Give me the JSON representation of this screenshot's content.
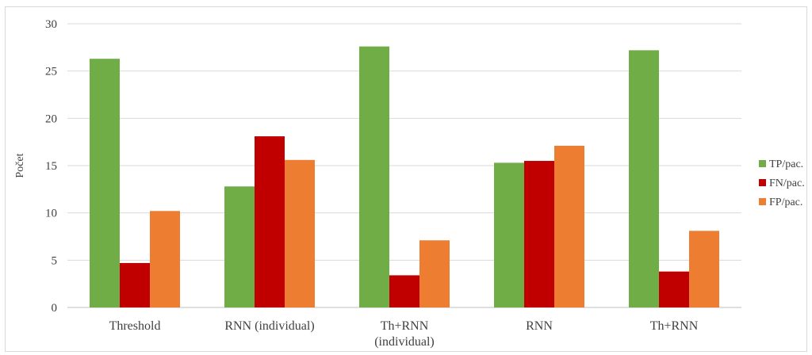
{
  "chart_data": {
    "type": "bar",
    "title": "",
    "xlabel": "",
    "ylabel": "Počet",
    "ylim": [
      0,
      30
    ],
    "yticks": [
      0,
      5,
      10,
      15,
      20,
      25,
      30
    ],
    "grid": true,
    "legend_position": "right",
    "categories": [
      [
        "Threshold"
      ],
      [
        "RNN (individual)"
      ],
      [
        "Th+RNN",
        "(individual)"
      ],
      [
        "RNN"
      ],
      [
        "Th+RNN"
      ]
    ],
    "series": [
      {
        "name": "TP/pac.",
        "color": "#70ad47",
        "values": [
          26.3,
          12.8,
          27.6,
          15.3,
          27.2
        ]
      },
      {
        "name": "FN/pac.",
        "color": "#c00000",
        "values": [
          4.7,
          18.1,
          3.4,
          15.5,
          3.8
        ]
      },
      {
        "name": "FP/pac.",
        "color": "#ed7d31",
        "values": [
          10.2,
          15.6,
          7.1,
          17.1,
          8.1
        ]
      }
    ]
  }
}
